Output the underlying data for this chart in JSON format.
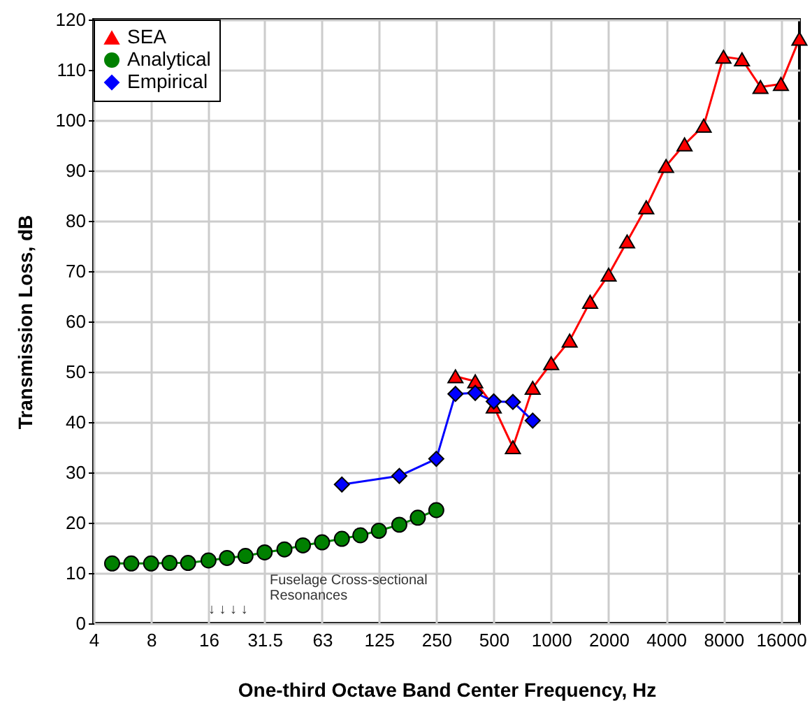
{
  "chart_data": {
    "type": "line",
    "xlabel": "One-third Octave Band Center Frequency, Hz",
    "ylabel": "Transmission Loss, dB",
    "log": "x",
    "xlim": [
      4,
      20000
    ],
    "xticks": [
      4,
      8,
      16,
      31.5,
      63,
      125,
      250,
      500,
      1000,
      2000,
      4000,
      8000,
      16000
    ],
    "ylim": [
      0,
      120
    ],
    "yticks": [
      0,
      10,
      20,
      30,
      40,
      50,
      60,
      70,
      80,
      90,
      100,
      110,
      120
    ],
    "grid": true,
    "legend": "top left",
    "series": [
      {
        "name": "SEA",
        "color": "#ff0000",
        "marker": "triangle",
        "x": [
          315,
          400,
          500,
          630,
          800,
          1000,
          1250,
          1600,
          2000,
          2500,
          3150,
          4000,
          5000,
          6300,
          8000,
          10000,
          12500,
          16000,
          20000
        ],
        "values": [
          49.1,
          48.1,
          43.1,
          35.0,
          46.8,
          51.7,
          56.2,
          63.9,
          69.3,
          75.9,
          82.7,
          90.9,
          95.2,
          98.9,
          112.6,
          112.1,
          106.6,
          107.2,
          116.2
        ]
      },
      {
        "name": "Analytical",
        "color": "#008000",
        "marker": "circle",
        "x": [
          5,
          6.3,
          8,
          10,
          12.5,
          16,
          20,
          25,
          31.5,
          40,
          50,
          63,
          80,
          100,
          125,
          160,
          200,
          250
        ],
        "values": [
          11.9,
          11.9,
          11.9,
          12.0,
          12.0,
          12.5,
          13.0,
          13.4,
          14.1,
          14.7,
          15.5,
          16.1,
          16.8,
          17.5,
          18.4,
          19.6,
          21.0,
          22.5
        ]
      },
      {
        "name": "Empirical",
        "color": "#0000ff",
        "marker": "diamond",
        "x": [
          80,
          160,
          250,
          315,
          400,
          500,
          630,
          800
        ],
        "values": [
          27.6,
          29.3,
          32.7,
          45.6,
          45.8,
          44.1,
          44.0,
          40.3
        ]
      }
    ],
    "annotations": [
      "Fuselage Cross-sectional\nResonances",
      "↓  ↓ ↓ ↓"
    ]
  }
}
